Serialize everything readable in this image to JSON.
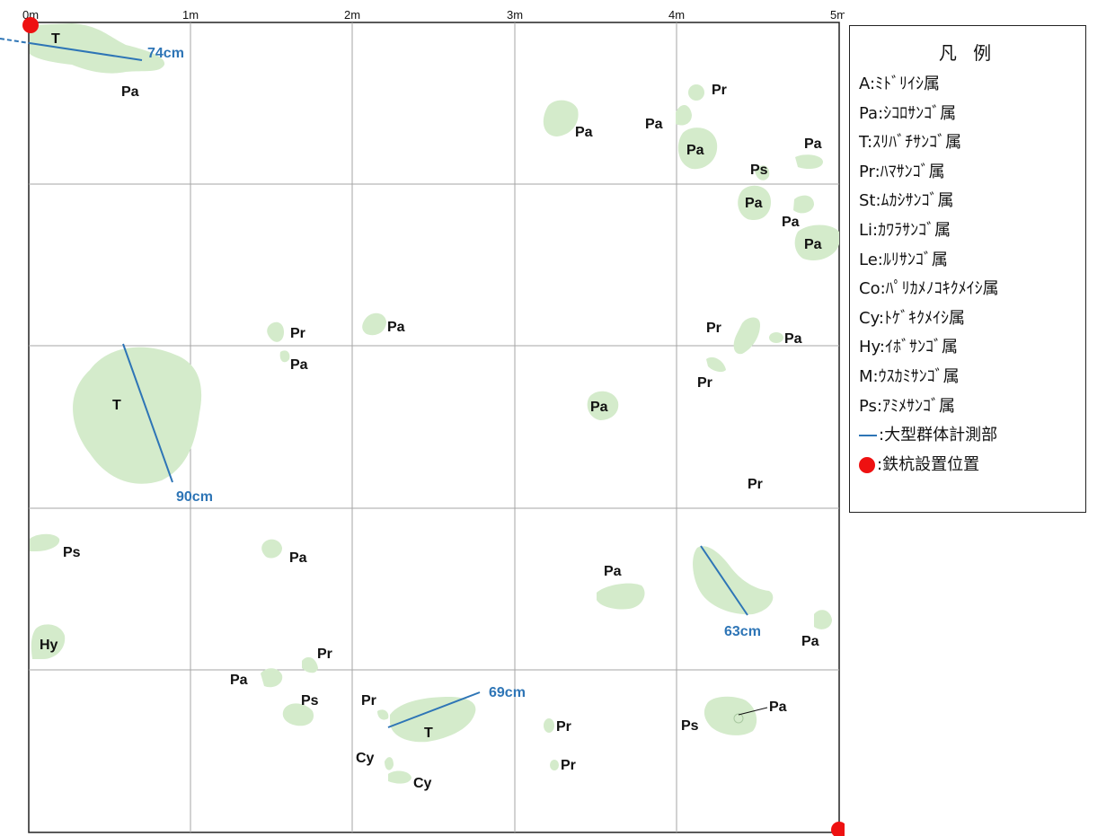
{
  "axis": {
    "labels": [
      "0m",
      "1m",
      "2m",
      "3m",
      "4m",
      "5m"
    ]
  },
  "colors": {
    "coral": "#d4ebcb",
    "measure": "#2e75b6",
    "stake": "#ee1111"
  },
  "legend": {
    "title": "凡 例",
    "items": [
      "A:ﾐﾄﾞﾘｲｼ属",
      "Pa:ｼｺﾛｻﾝｺﾞ属",
      "T:ｽﾘﾊﾞﾁｻﾝｺﾞ属",
      "Pr:ﾊﾏｻﾝｺﾞ属",
      "St:ﾑｶｼｻﾝｺﾞ属",
      "Li:ｶﾜﾗｻﾝｺﾞ属",
      "Le:ﾙﾘｻﾝｺﾞ属",
      "Co:ﾊﾟﾘｶﾒﾉｺｷｸﾒｲｼ属",
      "Cy:ﾄｹﾞｷｸﾒｲｼ属",
      "Hy:ｲﾎﾞｻﾝｺﾞ属",
      "M:ｳｽｶﾐｻﾝｺﾞ属",
      "Ps:ｱﾐﾒｻﾝｺﾞ属"
    ],
    "measure_label": ":大型群体計測部",
    "stake_label": ":鉄杭設置位置"
  },
  "measurements": [
    "74cm",
    "90cm",
    "63cm",
    "69cm"
  ],
  "labels": {
    "l01": "T",
    "l02": "Pa",
    "l03": "Pa",
    "l04": "Pr",
    "l05": "Pa",
    "l06": "Pa",
    "l07": "Pa",
    "l08": "Ps",
    "l09": "Pa",
    "l10": "Pa",
    "l11": "Pa",
    "l12": "Pr",
    "l13": "Pa",
    "l14": "Pa",
    "l15": "Pr",
    "l16": "Pa",
    "l17": "Pr",
    "l18": "T",
    "l19": "Pa",
    "l20": "Pr",
    "l21": "Ps",
    "l22": "Pa",
    "l23": "Pa",
    "l24": "Hy",
    "l25": "Pr",
    "l26": "63cm-skip",
    "l27": "Pa",
    "l28": "Pa",
    "l29": "Ps",
    "l30": "Pr",
    "l31": "T",
    "l32": "Pr",
    "l33": "Pr",
    "l34": "Cy",
    "l35": "Cy",
    "l36": "Ps",
    "l37": "Pa"
  }
}
